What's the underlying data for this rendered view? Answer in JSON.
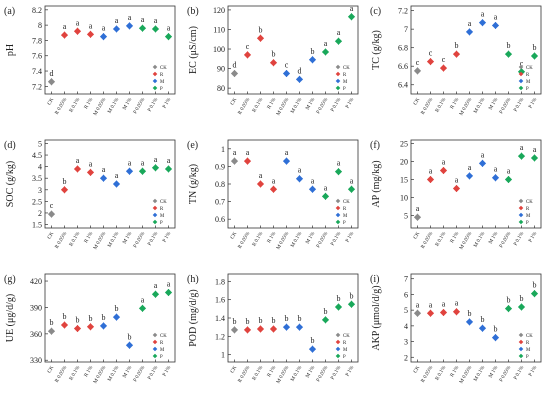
{
  "figure": {
    "x_categories": [
      "CK",
      "R 0.05%",
      "R 0.1%",
      "R 1%",
      "M 0.05%",
      "M 0.1%",
      "M 1%",
      "P 0.05%",
      "P 0.1%",
      "P 1%"
    ],
    "legend": [
      "CK",
      "R",
      "M",
      "P"
    ],
    "colors": {
      "CK": "#8a8a8a",
      "R": "#e0433e",
      "M": "#2f6fd6",
      "P": "#19a85a"
    }
  },
  "chart_data": [
    {
      "type": "scatter",
      "panel": "(a)",
      "ylabel": "pH",
      "ylim": [
        7.1,
        8.25
      ],
      "yticks": [
        7.2,
        7.4,
        7.6,
        7.8,
        8.0,
        8.2
      ],
      "values": [
        7.26,
        7.87,
        7.92,
        7.88,
        7.85,
        7.95,
        7.99,
        7.96,
        7.95,
        7.85
      ],
      "letters": [
        "d",
        "a",
        "a",
        "a",
        "a",
        "a",
        "a",
        "a",
        "a",
        "a"
      ],
      "x_offsets": [
        0,
        0,
        0,
        0,
        0,
        0,
        0,
        0,
        0,
        0
      ]
    },
    {
      "type": "scatter",
      "panel": "(b)",
      "ylabel": "EC (μS/cm)",
      "ylim": [
        77,
        122
      ],
      "yticks": [
        80,
        90,
        100,
        110,
        120
      ],
      "values": [
        87.5,
        97.0,
        105.5,
        93.0,
        87.5,
        84.5,
        94.5,
        98.5,
        104.0,
        116.5
      ],
      "letters": [
        "d",
        "c",
        "b",
        "b",
        "c",
        "d",
        "b",
        "a",
        "a",
        "a"
      ],
      "x_offsets": [
        0,
        0,
        0,
        0,
        0,
        0,
        0,
        0,
        0,
        0
      ]
    },
    {
      "type": "scatter",
      "panel": "(c)",
      "ylabel": "TC (g/kg)",
      "ylim": [
        6.3,
        7.25
      ],
      "yticks": [
        6.4,
        6.6,
        6.8,
        7.0,
        7.2
      ],
      "values": [
        6.55,
        6.65,
        6.58,
        6.73,
        6.97,
        7.07,
        7.04,
        6.73,
        6.54,
        6.71
      ],
      "letters": [
        "c",
        "c",
        "c",
        "b",
        "a",
        "a",
        "a",
        "b",
        "c",
        "b"
      ],
      "x_offsets": [
        0,
        0,
        0,
        0,
        0,
        0,
        0,
        0,
        0,
        0
      ]
    },
    {
      "type": "scatter",
      "panel": "(d)",
      "ylabel": "SOC (g/kg)",
      "ylim": [
        1.35,
        5.15
      ],
      "yticks": [
        1.5,
        2.0,
        2.5,
        3.0,
        3.5,
        4.0,
        4.5,
        5.0
      ],
      "values": [
        1.95,
        3.0,
        3.9,
        3.75,
        3.5,
        3.25,
        3.8,
        3.8,
        3.95,
        3.9
      ],
      "letters": [
        "c",
        "b",
        "a",
        "a",
        "a",
        "a",
        "a",
        "a",
        "a",
        "a"
      ],
      "x_offsets": [
        0,
        0,
        0,
        0,
        0,
        0,
        0,
        0,
        0,
        0
      ]
    },
    {
      "type": "scatter",
      "panel": "(e)",
      "ylabel": "TN (g/kg)",
      "ylim": [
        0.55,
        1.05
      ],
      "yticks": [
        0.6,
        0.7,
        0.8,
        0.9,
        1.0
      ],
      "values": [
        0.93,
        0.93,
        0.8,
        0.77,
        0.93,
        0.83,
        0.77,
        0.73,
        0.87,
        0.77
      ],
      "letters": [
        "a",
        "a",
        "a",
        "a",
        "a",
        "a",
        "a",
        "a",
        "a",
        "a"
      ],
      "x_offsets": [
        0,
        0,
        0,
        0,
        0,
        0,
        0,
        0,
        0,
        0
      ]
    },
    {
      "type": "scatter",
      "panel": "(f)",
      "ylabel": "AP (mg/kg)",
      "ylim": [
        1.5,
        26
      ],
      "yticks": [
        5,
        10,
        15,
        20,
        25
      ],
      "values": [
        4.5,
        15.0,
        17.5,
        12.5,
        16.0,
        19.5,
        15.5,
        15.0,
        21.5,
        21.0
      ],
      "letters": [
        "a",
        "a",
        "a",
        "a",
        "a",
        "a",
        "a",
        "a",
        "a",
        "a"
      ],
      "x_offsets": [
        0,
        0,
        0,
        0,
        0,
        0,
        0,
        0,
        0,
        0
      ]
    },
    {
      "type": "scatter",
      "panel": "(g)",
      "ylabel": "UE (μg/d/g)",
      "ylim": [
        328,
        428
      ],
      "yticks": [
        330,
        360,
        390,
        420
      ],
      "values": [
        363,
        370,
        366,
        368,
        369,
        379,
        347,
        389,
        405,
        407
      ],
      "letters": [
        "b",
        "b",
        "b",
        "b",
        "b",
        "b",
        "b",
        "a",
        "a",
        "a"
      ],
      "x_offsets": [
        0,
        0,
        0,
        0,
        0,
        0,
        0,
        0,
        0,
        0
      ]
    },
    {
      "type": "scatter",
      "panel": "(h)",
      "ylabel": "POD (mg/d/g)",
      "ylim": [
        0.92,
        1.88
      ],
      "yticks": [
        1.0,
        1.2,
        1.4,
        1.6,
        1.8
      ],
      "values": [
        1.27,
        1.27,
        1.28,
        1.28,
        1.3,
        1.3,
        1.06,
        1.38,
        1.52,
        1.55
      ],
      "letters": [
        "b",
        "b",
        "b",
        "b",
        "b",
        "b",
        "b",
        "b",
        "b",
        "b"
      ],
      "x_offsets": [
        0,
        0,
        0,
        0,
        0,
        0,
        0,
        0,
        0,
        0
      ]
    },
    {
      "type": "scatter",
      "panel": "(i)",
      "ylabel": "AKP (μmol/d/g)",
      "ylim": [
        1.7,
        7.3
      ],
      "yticks": [
        2,
        3,
        4,
        5,
        6,
        7
      ],
      "values": [
        4.8,
        4.8,
        4.85,
        4.9,
        4.25,
        3.85,
        3.25,
        5.1,
        5.2,
        6.05
      ],
      "letters": [
        "a",
        "a",
        "a",
        "a",
        "b",
        "b",
        "b",
        "b",
        "b",
        "b"
      ],
      "x_offsets": [
        0,
        0,
        0,
        0,
        0,
        0,
        0,
        0,
        0,
        0
      ]
    }
  ]
}
